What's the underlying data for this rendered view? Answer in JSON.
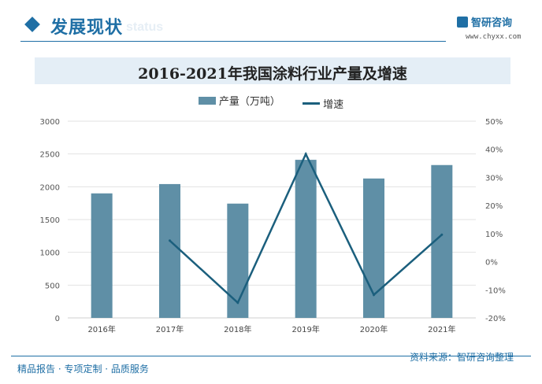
{
  "header": {
    "section_title": "发展现状",
    "section_subtitle": "status",
    "brand_name": "智研咨询",
    "brand_url": "www.chyxx.com"
  },
  "chart_data": {
    "type": "bar",
    "title": "2016-2021年我国涂料行业产量及增速",
    "categories": [
      "2016年",
      "2017年",
      "2018年",
      "2019年",
      "2020年",
      "2021年"
    ],
    "series": [
      {
        "name": "产量（万吨）",
        "type": "bar",
        "axis": "left",
        "values": [
          1899,
          2041,
          1743,
          2411,
          2126,
          2331
        ]
      },
      {
        "name": "增速",
        "type": "line",
        "axis": "right",
        "values": [
          null,
          7.5,
          -14.6,
          38.3,
          -11.8,
          9.6
        ]
      }
    ],
    "y_left": {
      "min": 0,
      "max": 3000,
      "ticks": [
        "0",
        "500",
        "1000",
        "1500",
        "2000",
        "2500",
        "3000"
      ]
    },
    "y_right": {
      "min": -20,
      "max": 50,
      "ticks": [
        "-20%",
        "-10%",
        "0%",
        "10%",
        "20%",
        "30%",
        "40%",
        "50%"
      ]
    },
    "grid": true,
    "legend_position": "top-center",
    "colors": {
      "bar": "#5f8fa6",
      "line": "#1b5f7d"
    }
  },
  "footer": {
    "left": "精品报告 · 专项定制 · 品质服务",
    "source": "资料来源：智研咨询整理"
  }
}
